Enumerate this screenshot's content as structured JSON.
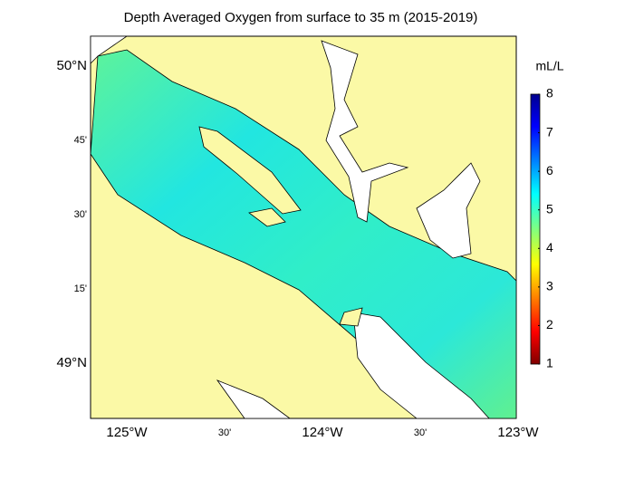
{
  "title": "Depth Averaged Oxygen from surface to 35 m (2015-2019)",
  "lat_labels": [
    "50°N",
    "45'",
    "30'",
    "15'",
    "49°N"
  ],
  "lon_labels": [
    "125°W",
    "30'",
    "124°W",
    "30'",
    "123°W"
  ],
  "colorbar": {
    "label": "mL/L",
    "lim": [
      1,
      8
    ],
    "ticks": [
      1,
      2,
      3,
      4,
      5,
      6,
      7,
      8
    ]
  }
}
